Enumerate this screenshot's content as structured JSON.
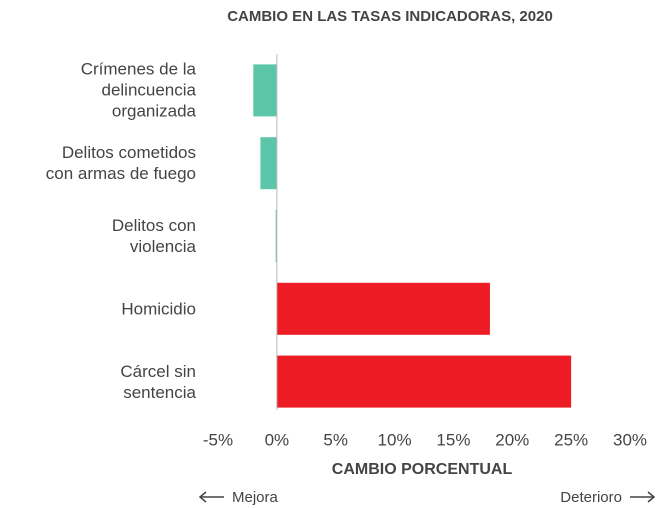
{
  "chart_data": {
    "type": "hbar",
    "title": "CAMBIO EN LAS TASAS INDICADORAS, 2020",
    "categories": [
      "Crímenes de la\ndelincuencia\norganizada",
      "Delitos cometidos\ncon armas de fuego",
      "Delitos con\nviolencia",
      "Homicidio",
      "Cárcel sin\nsentencia"
    ],
    "values": [
      -2.0,
      -1.4,
      -0.1,
      18.1,
      25.0
    ],
    "colors": [
      "#5bc6a9",
      "#5bc6a9",
      "#5bc6a9",
      "#ed1c24",
      "#ed1c24"
    ],
    "xlim": [
      -5,
      30
    ],
    "xticks": [
      {
        "value": -5,
        "label": "-5%"
      },
      {
        "value": 0,
        "label": "0%"
      },
      {
        "value": 5,
        "label": "5%"
      },
      {
        "value": 10,
        "label": "10%"
      },
      {
        "value": 15,
        "label": "15%"
      },
      {
        "value": 20,
        "label": "20%"
      },
      {
        "value": 25,
        "label": "25%"
      },
      {
        "value": 30,
        "label": "30%"
      }
    ],
    "xlabel": "CAMBIO PORCENTUAL",
    "annotations": [
      "Mejora",
      "Deterioro"
    ]
  }
}
